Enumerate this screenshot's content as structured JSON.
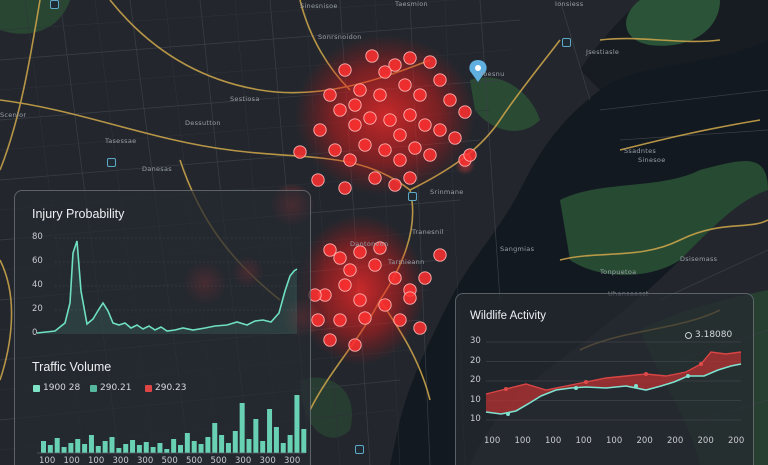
{
  "map": {
    "labels": [
      "Sonrsnoidon",
      "Sestiosa",
      "Dessutton",
      "Tasessae",
      "Danesas",
      "Scenlor",
      "Sinesnisoe",
      "Yoesnu",
      "Jsestiasle",
      "Sinesoe",
      "Tranesnil",
      "Tonpuetoa",
      "Ssadntes",
      "Dsisemass",
      "Tarmieann",
      "Dantonvon",
      "Taesmion",
      "Ionsiess",
      "Sangmias",
      "Srinmane",
      "Uhanseesst"
    ],
    "water_color": "#141a20",
    "land_color": "#23272d",
    "park_color": "#2f5a3a",
    "road_color": "#c8a24a",
    "hotspot_color": "#ff2a2a"
  },
  "injury_panel": {
    "title": "Injury Probability",
    "y_ticks": [
      "80",
      "60",
      "40",
      "20",
      "0"
    ],
    "line_color": "#6fe0c0"
  },
  "traffic_panel": {
    "title": "Traffic Volume",
    "legend": [
      {
        "label": "1900 28",
        "color": "#7fe3c8"
      },
      {
        "label": "290.21",
        "color": "#56b8a0"
      },
      {
        "label": "290.23",
        "color": "#e04545"
      }
    ],
    "x_ticks": [
      "100",
      "100",
      "100",
      "300",
      "300",
      "500",
      "500",
      "500",
      "300",
      "300",
      "300"
    ],
    "bar_color": "#6fe0c0"
  },
  "wildlife_panel": {
    "title": "Wildlife Activity",
    "legend_label": "3.18080",
    "y_ticks": [
      "30",
      "20",
      "20",
      "10",
      "10"
    ],
    "x_ticks": [
      "100",
      "100",
      "100",
      "100",
      "100",
      "200",
      "200",
      "200",
      "200"
    ],
    "series_colors": [
      "#c83a3a",
      "#7fe3d0"
    ]
  }
}
